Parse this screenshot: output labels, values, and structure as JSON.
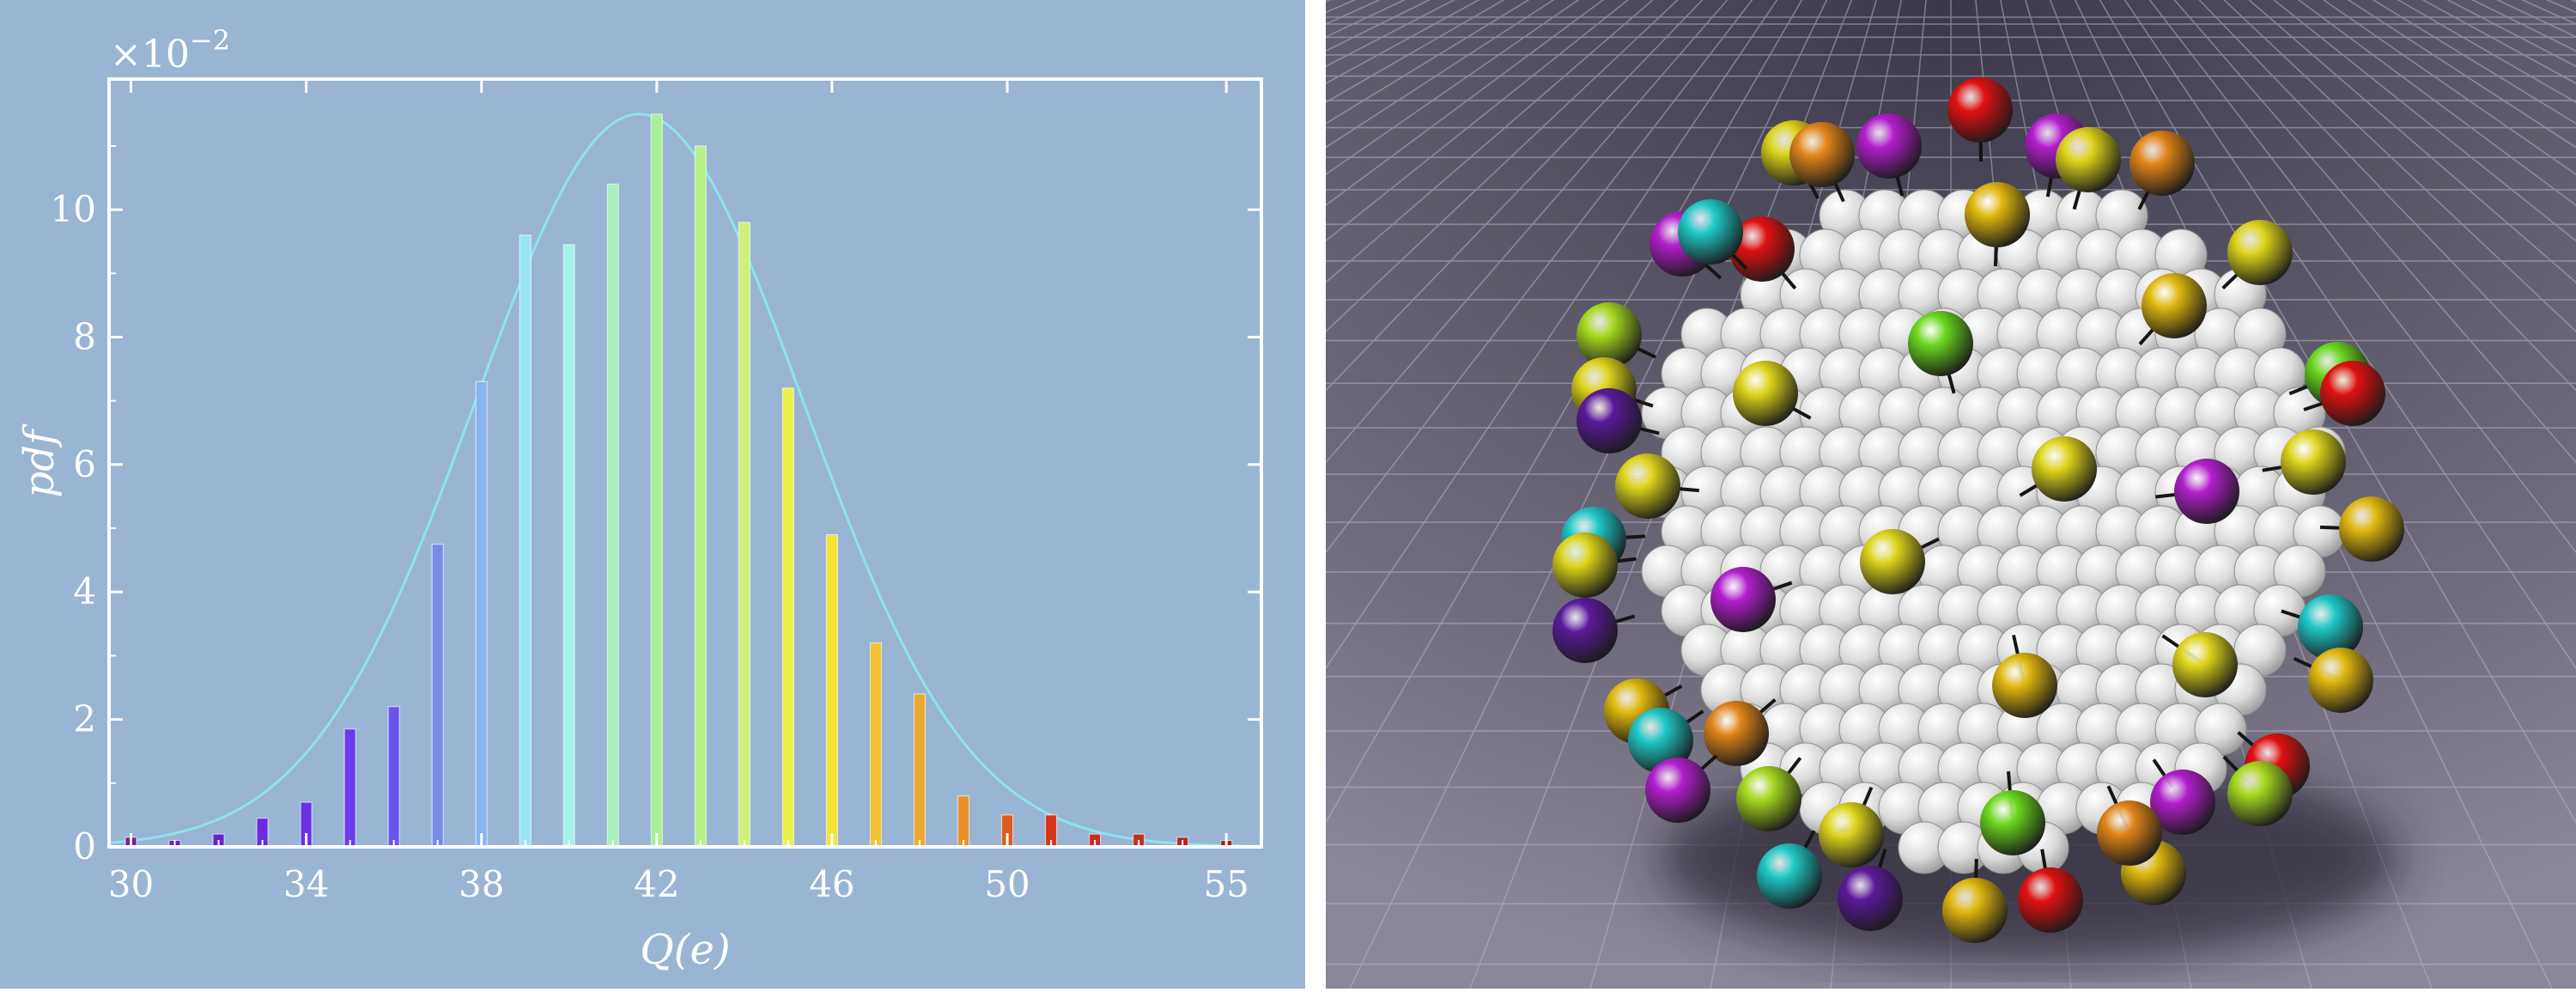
{
  "chart_data": {
    "type": "bar",
    "xlabel": "Q(e)",
    "ylabel": "pdf",
    "scale_label": "×10",
    "scale_exponent": "−2",
    "x": [
      30,
      31,
      32,
      33,
      34,
      35,
      36,
      37,
      38,
      39,
      40,
      41,
      42,
      43,
      44,
      45,
      46,
      47,
      48,
      49,
      50,
      51,
      52,
      53,
      54,
      55
    ],
    "values": [
      0.15,
      0.1,
      0.2,
      0.45,
      0.7,
      1.85,
      2.2,
      4.75,
      7.3,
      9.6,
      9.45,
      10.4,
      11.5,
      11.0,
      9.8,
      7.2,
      4.9,
      3.2,
      2.4,
      0.8,
      0.5,
      0.5,
      0.2,
      0.2,
      0.15,
      0.1
    ],
    "bar_colors": [
      "#7a1f9e",
      "#6a1fc0",
      "#6a20d4",
      "#6a2be0",
      "#6a30e8",
      "#6a3aee",
      "#6a55ec",
      "#7a8ae8",
      "#88b4f0",
      "#99e4f6",
      "#a6f2ea",
      "#a6f0bc",
      "#a8ee96",
      "#b6f08a",
      "#d0f07a",
      "#eef04a",
      "#f4e43a",
      "#f2c230",
      "#eea830",
      "#e8902a",
      "#de5a1e",
      "#d8341a",
      "#cc2a20",
      "#c03020",
      "#b02828",
      "#a02020"
    ],
    "fit_curve": {
      "mean": 41.6,
      "sd": 3.75,
      "peak": 11.5,
      "color": "#8ce4ee"
    },
    "xticks": [
      30,
      34,
      38,
      42,
      46,
      50,
      55
    ],
    "yticks": [
      0,
      2,
      4,
      6,
      8,
      10
    ],
    "xlim": [
      29.5,
      55.8
    ],
    "ylim": [
      0,
      12.05
    ],
    "grid": false
  },
  "render": {
    "floor_color": "#6f6b7c",
    "grid_line_color": "#b8b4c6",
    "core_color": "#dcdcdc",
    "ligand_colors": {
      "red": "#e01010",
      "yellow": "#dcd41a",
      "gold": "#e0b80e",
      "lime": "#a6d81e",
      "green": "#6ad81c",
      "purple": "#b21ecc",
      "violet": "#5a1a9a",
      "orange": "#e08418",
      "cyan": "#1ec8c6"
    }
  }
}
